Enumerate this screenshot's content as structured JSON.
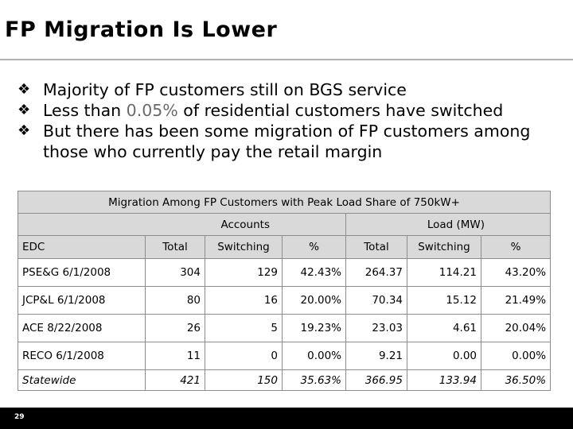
{
  "slide": {
    "title": "FP Migration Is Lower",
    "page_number": "29"
  },
  "bullets": [
    {
      "pre": "Majority of FP customers still on BGS service",
      "accent": "",
      "post": ""
    },
    {
      "pre": "Less than ",
      "accent": "0.05%",
      "post": " of residential customers have switched"
    },
    {
      "pre": "But there has been some migration of FP customers among those who currently pay the retail margin",
      "accent": "",
      "post": ""
    }
  ],
  "table": {
    "caption": "Migration Among FP Customers with Peak Load Share of 750kW+",
    "group_accounts": "Accounts",
    "group_load": "Load (MW)",
    "columns": [
      "EDC",
      "Total",
      "Switching",
      "%",
      "Total",
      "Switching",
      "%"
    ],
    "rows": [
      [
        "PSE&G 6/1/2008",
        "304",
        "129",
        "42.43%",
        "264.37",
        "114.21",
        "43.20%"
      ],
      [
        "JCP&L 6/1/2008",
        "80",
        "16",
        "20.00%",
        "70.34",
        "15.12",
        "21.49%"
      ],
      [
        "ACE 8/22/2008",
        "26",
        "5",
        "19.23%",
        "23.03",
        "4.61",
        "20.04%"
      ],
      [
        "RECO 6/1/2008",
        "11",
        "0",
        "0.00%",
        "9.21",
        "0.00",
        "0.00%"
      ]
    ],
    "total_row": [
      "Statewide",
      "421",
      "150",
      "35.63%",
      "366.95",
      "133.94",
      "36.50%"
    ]
  },
  "colors": {
    "header_fill": "#d9d9d9",
    "footer_bar": "#000000",
    "accent_text": "#6a6a6a"
  }
}
